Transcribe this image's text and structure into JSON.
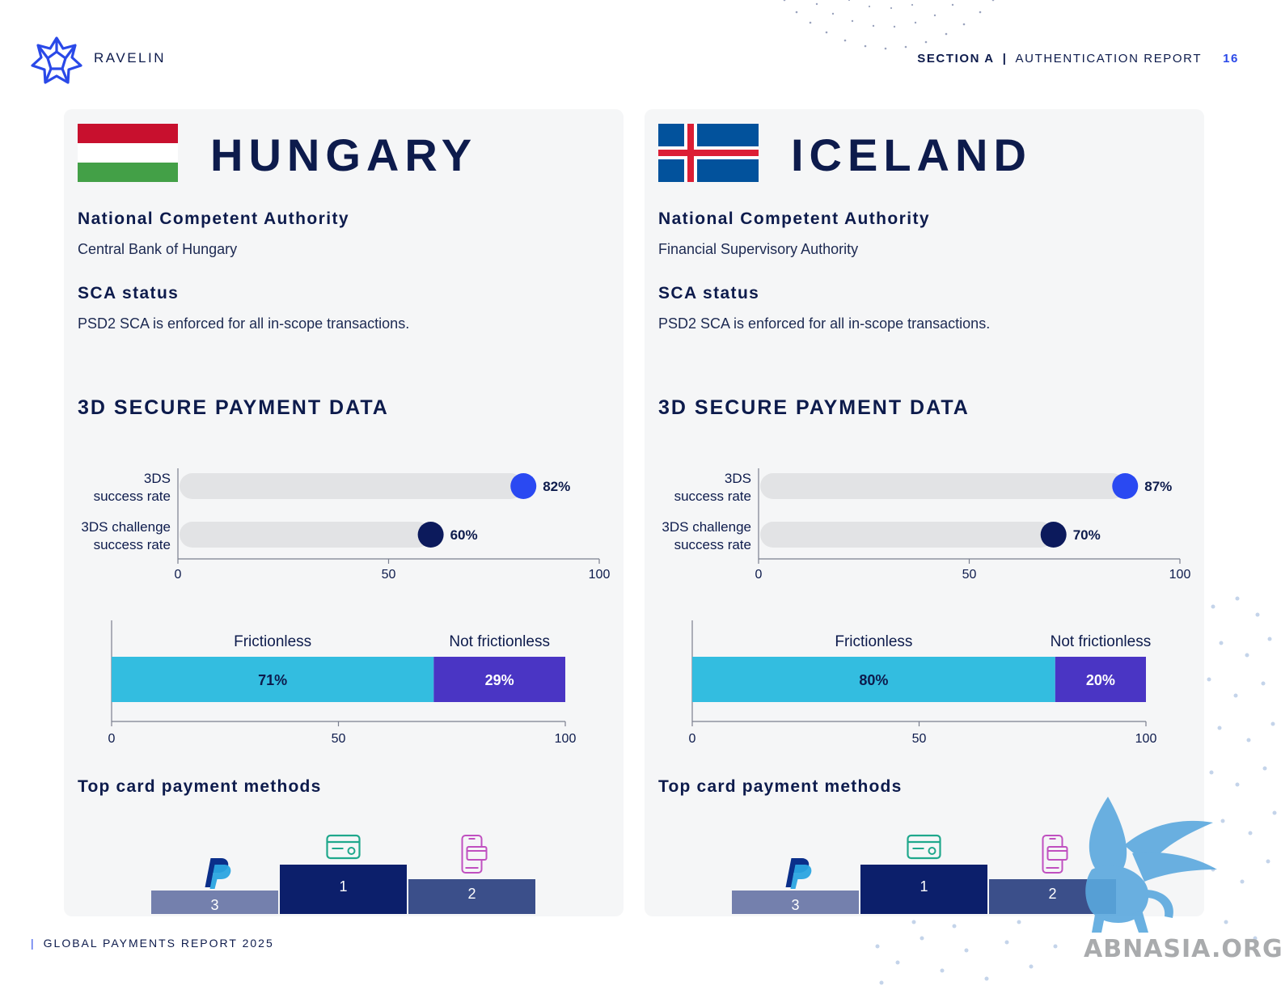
{
  "header": {
    "brand": "RAVELIN",
    "section": "SECTION A",
    "separator": "|",
    "report": "AUTHENTICATION REPORT",
    "page_number": "16"
  },
  "footer": {
    "pipe": "|",
    "text": "GLOBAL PAYMENTS REPORT 2025"
  },
  "watermark": "ABNASIA.ORG",
  "colors": {
    "navy": "#0d1b4c",
    "blue_dot": "#2a49f2",
    "dark_dot": "#0c1a5c",
    "frictionless": "#33bde0",
    "not_frictionless": "#4a35c4",
    "track": "#e2e3e5",
    "podium1": "#0c1f6b",
    "podium2": "#3b4f8a",
    "podium3": "#7480ad"
  },
  "countries": [
    {
      "name": "HUNGARY",
      "flag": "hungary-flag",
      "nca_label": "National Competent Authority",
      "nca_value": "Central Bank of Hungary",
      "sca_label": "SCA status",
      "sca_value": "PSD2 SCA is enforced for all in-scope transactions.",
      "section_title": "3D SECURE PAYMENT DATA",
      "top_methods_label": "Top card payment methods",
      "chart_data": [
        {
          "type": "bar",
          "orientation": "horizontal",
          "categories": [
            "3DS\nsuccess rate",
            "3DS challenge\nsuccess rate"
          ],
          "values": [
            82,
            60
          ],
          "value_labels": [
            "82%",
            "60%"
          ],
          "xlim": [
            0,
            100
          ],
          "xticks": [
            "0",
            "50",
            "100"
          ]
        },
        {
          "type": "bar",
          "orientation": "horizontal-stacked",
          "series": [
            {
              "name": "Frictionless",
              "value": 71,
              "label": "71%"
            },
            {
              "name": "Not frictionless",
              "value": 29,
              "label": "29%"
            }
          ],
          "xlim": [
            0,
            100
          ],
          "xticks": [
            "0",
            "50",
            "100"
          ]
        }
      ],
      "podium": [
        {
          "rank": "1",
          "icon": "credit-card-icon"
        },
        {
          "rank": "2",
          "icon": "mobile-wallet-icon"
        },
        {
          "rank": "3",
          "icon": "paypal-icon"
        }
      ]
    },
    {
      "name": "ICELAND",
      "flag": "iceland-flag",
      "nca_label": "National Competent Authority",
      "nca_value": "Financial Supervisory Authority",
      "sca_label": "SCA status",
      "sca_value": "PSD2 SCA is enforced for all in-scope transactions.",
      "section_title": "3D SECURE PAYMENT DATA",
      "top_methods_label": "Top card payment methods",
      "chart_data": [
        {
          "type": "bar",
          "orientation": "horizontal",
          "categories": [
            "3DS\nsuccess rate",
            "3DS challenge\nsuccess rate"
          ],
          "values": [
            87,
            70
          ],
          "value_labels": [
            "87%",
            "70%"
          ],
          "xlim": [
            0,
            100
          ],
          "xticks": [
            "0",
            "50",
            "100"
          ]
        },
        {
          "type": "bar",
          "orientation": "horizontal-stacked",
          "series": [
            {
              "name": "Frictionless",
              "value": 80,
              "label": "80%"
            },
            {
              "name": "Not frictionless",
              "value": 20,
              "label": "20%"
            }
          ],
          "xlim": [
            0,
            100
          ],
          "xticks": [
            "0",
            "50",
            "100"
          ]
        }
      ],
      "podium": [
        {
          "rank": "1",
          "icon": "credit-card-icon"
        },
        {
          "rank": "2",
          "icon": "mobile-wallet-icon"
        },
        {
          "rank": "3",
          "icon": "paypal-icon"
        }
      ]
    }
  ]
}
